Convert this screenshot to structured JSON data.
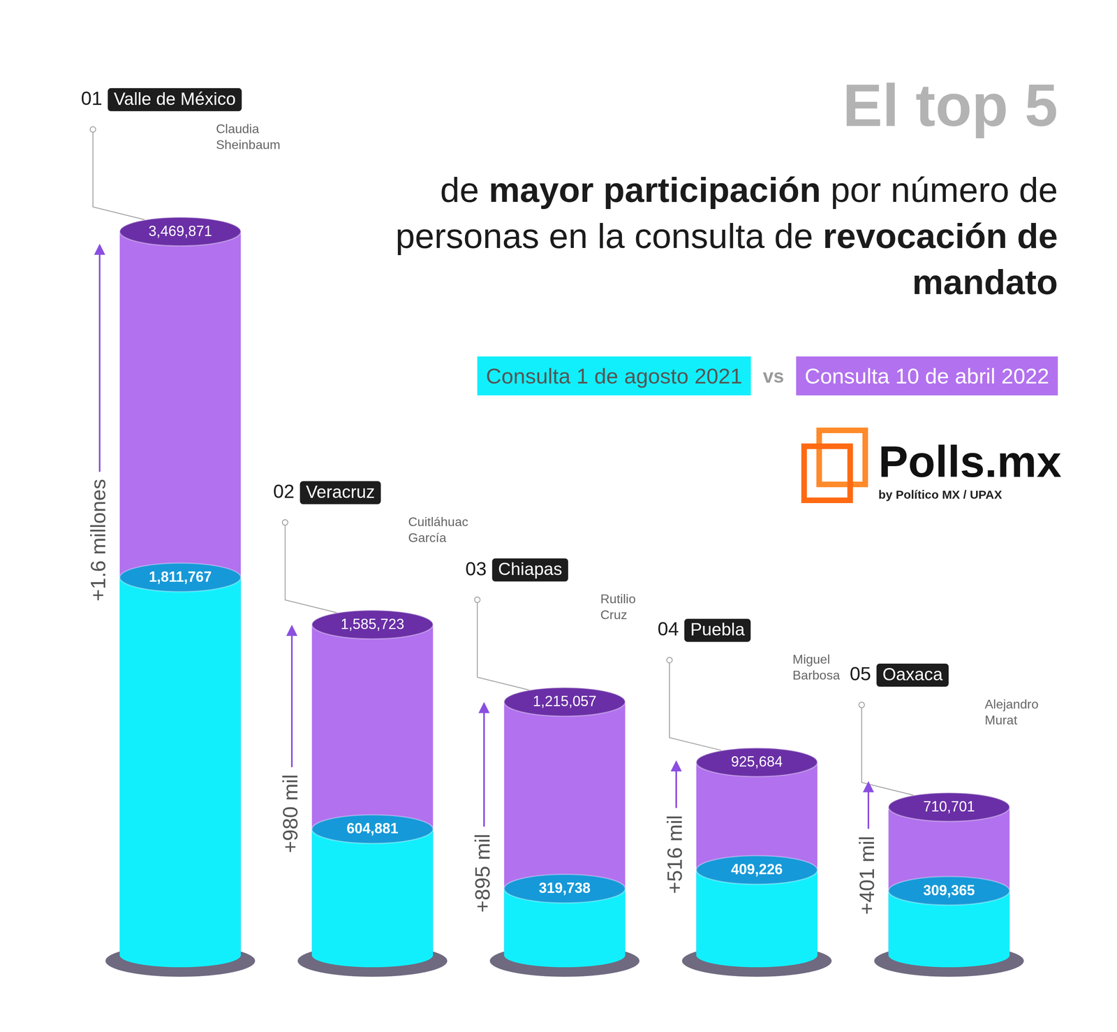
{
  "chart_data": {
    "type": "bar",
    "title": "El top 5",
    "subtitle": [
      "de ",
      "mayor participación",
      " por número de personas en la consulta de ",
      "revocación de mandato"
    ],
    "categories": [
      "Valle de México",
      "Veracruz",
      "Chiapas",
      "Puebla",
      "Oaxaca"
    ],
    "ranks": [
      "01",
      "02",
      "03",
      "04",
      "05"
    ],
    "governors": [
      "Claudia Sheinbaum",
      "Cuitláhuac García",
      "Rutilio Cruz",
      "Miguel Barbosa",
      "Alejandro Murat"
    ],
    "series": [
      {
        "name": "Consulta 1 de agosto 2021",
        "color": "#12effc",
        "values": [
          1811767,
          604881,
          319738,
          409226,
          309365
        ],
        "value_labels": [
          "1,811,767",
          "604,881",
          "319,738",
          "409,226",
          "309,365"
        ]
      },
      {
        "name": "Consulta 10 de abril 2022",
        "color": "#b271ee",
        "values": [
          3469871,
          1585723,
          1215057,
          925684,
          710701
        ],
        "value_labels": [
          "3,469,871",
          "1,585,723",
          "1,215,057",
          "925,684",
          "710,701"
        ]
      }
    ],
    "differences": [
      1600000,
      980000,
      895000,
      516000,
      401000
    ],
    "difference_labels": [
      "+1.6 millones",
      "+980 mil",
      "+895 mil",
      "+516 mil",
      "+401 mil"
    ],
    "legend_separator": "vs",
    "source": "Polls.mx",
    "source_note": "by Político MX / UPAX",
    "ylim": [
      0,
      3500000
    ],
    "grid": false,
    "legend": "top-right",
    "data_labels": true,
    "tick_labels": false
  }
}
